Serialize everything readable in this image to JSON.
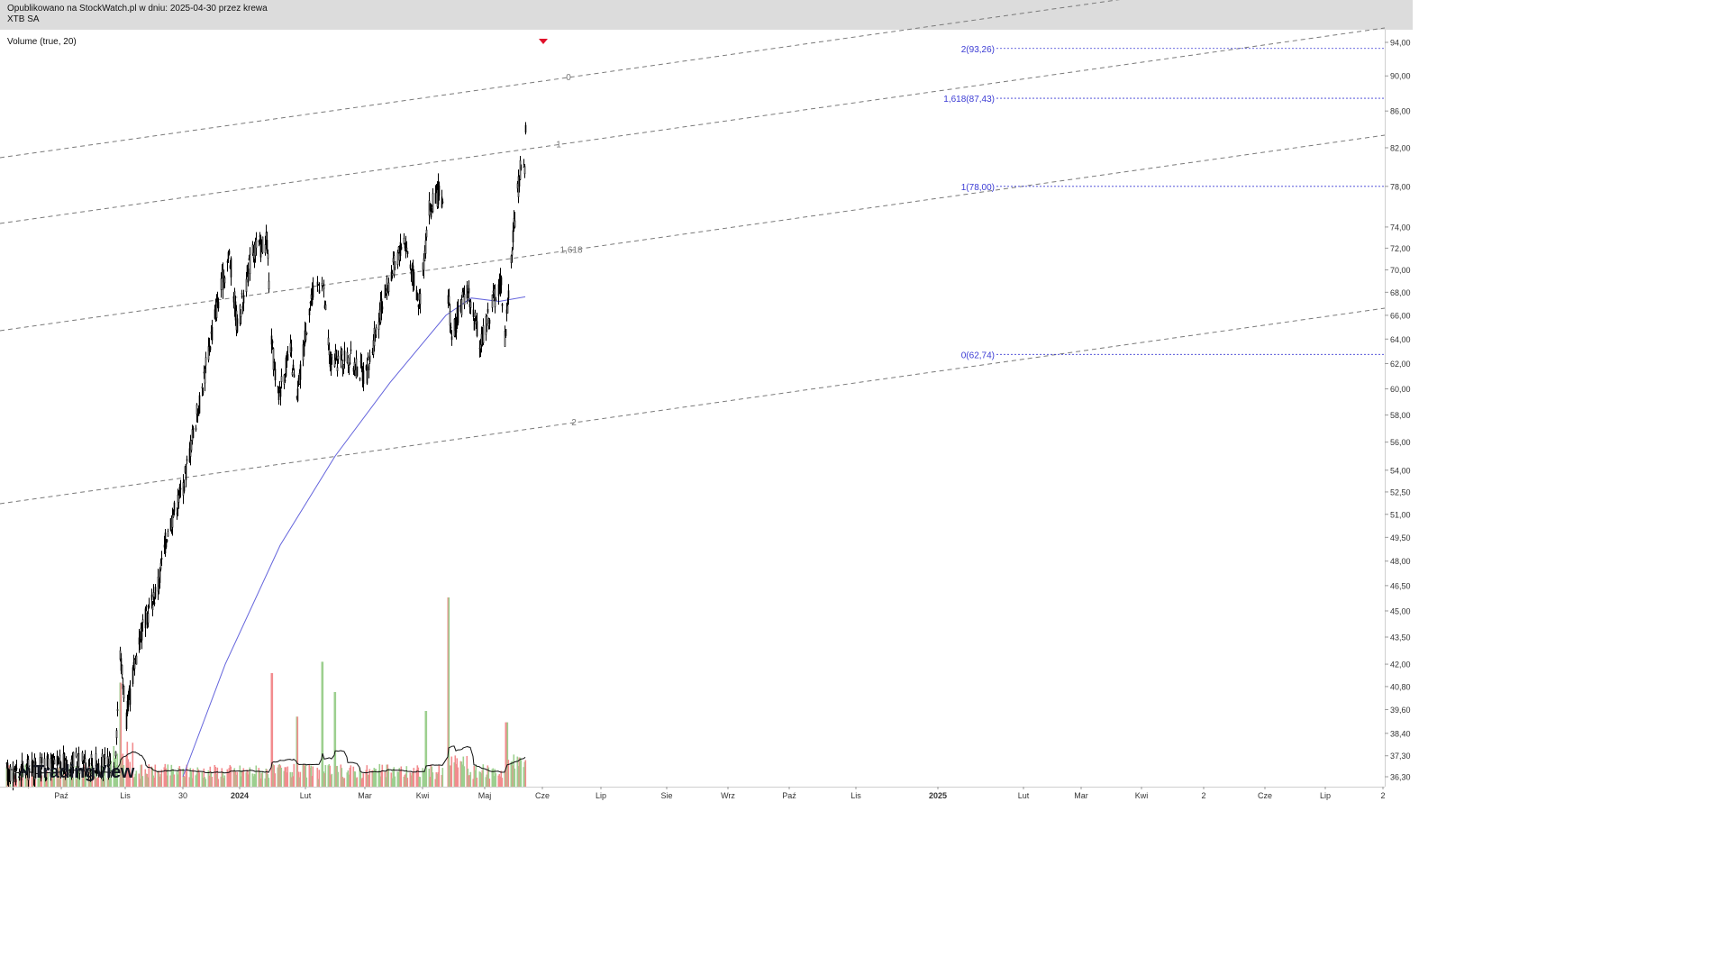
{
  "header": {
    "line1": "Opublikowano na StockWatch.pl w dniu: 2025-04-30 przez krewa",
    "line2": "XTB SA"
  },
  "indicator_label": "Volume (true, 20)",
  "logo_text": "TradingView",
  "colors": {
    "up": "#26a69a",
    "down": "#ef5350",
    "vol_up": "#9ccf8f",
    "vol_down": "#f28b8e",
    "candle": "#000000",
    "ma": "#6464dc",
    "fib": "#3b3bd4",
    "arrow": "#e0102a"
  },
  "chart_data": {
    "type": "candlestick",
    "y_axis": {
      "scale": "log",
      "ticks": [
        "94,00",
        "90,00",
        "86,00",
        "82,00",
        "78,00",
        "74,00",
        "72,00",
        "70,00",
        "68,00",
        "66,00",
        "64,00",
        "62,00",
        "60,00",
        "58,00",
        "56,00",
        "54,00",
        "52,50",
        "51,00",
        "49,50",
        "48,00",
        "46,50",
        "45,00",
        "43,50",
        "42,00",
        "40,80",
        "39,60",
        "38,40",
        "37,30",
        "36,30"
      ]
    },
    "x_axis": {
      "ticks": [
        "Paź",
        "Lis",
        "30",
        "2024",
        "Lut",
        "Mar",
        "Kwi",
        "Maj",
        "Cze",
        "Lip",
        "Sie",
        "Wrz",
        "Paź",
        "Lis",
        "2025",
        "Lut",
        "Mar",
        "Kwi",
        "2",
        "Cze",
        "Lip",
        "2"
      ]
    },
    "price_path": [
      {
        "date": "2023-10-02",
        "close": 36.5
      },
      {
        "date": "2023-12-27",
        "close": 37.0
      },
      {
        "date": "2024-01-30",
        "close": 36.8
      },
      {
        "date": "2024-02-05",
        "close": 42.5
      },
      {
        "date": "2024-02-12",
        "close": 39.2
      },
      {
        "date": "2024-02-26",
        "close": 43.5
      },
      {
        "date": "2024-03-18",
        "close": 46.5
      },
      {
        "date": "2024-03-28",
        "close": 49.8
      },
      {
        "date": "2024-04-15",
        "close": 53.0
      },
      {
        "date": "2024-05-06",
        "close": 60.0
      },
      {
        "date": "2024-05-20",
        "close": 66.0
      },
      {
        "date": "2024-06-05",
        "close": 71.5
      },
      {
        "date": "2024-06-14",
        "close": 65.0
      },
      {
        "date": "2024-07-01",
        "close": 71.8
      },
      {
        "date": "2024-07-17",
        "close": 72.5
      },
      {
        "date": "2024-07-22",
        "close": 63.5
      },
      {
        "date": "2024-07-29",
        "close": 59.5
      },
      {
        "date": "2024-08-12",
        "close": 63.0
      },
      {
        "date": "2024-08-19",
        "close": 59.0
      },
      {
        "date": "2024-09-02",
        "close": 67.0
      },
      {
        "date": "2024-09-16",
        "close": 69.5
      },
      {
        "date": "2024-09-25",
        "close": 62.0
      },
      {
        "date": "2024-10-14",
        "close": 62.5
      },
      {
        "date": "2024-11-04",
        "close": 61.0
      },
      {
        "date": "2024-11-25",
        "close": 68.0
      },
      {
        "date": "2024-12-16",
        "close": 73.0
      },
      {
        "date": "2025-01-02",
        "close": 67.0
      },
      {
        "date": "2025-01-13",
        "close": 75.5
      },
      {
        "date": "2025-01-24",
        "close": 77.5
      },
      {
        "date": "2025-01-31",
        "close": 74.0
      },
      {
        "date": "2025-02-03",
        "close": 68.0
      },
      {
        "date": "2025-02-07",
        "close": 64.0
      },
      {
        "date": "2025-02-24",
        "close": 68.5
      },
      {
        "date": "2025-03-10",
        "close": 63.5
      },
      {
        "date": "2025-03-24",
        "close": 67.0
      },
      {
        "date": "2025-04-03",
        "close": 69.0
      },
      {
        "date": "2025-04-07",
        "close": 64.0
      },
      {
        "date": "2025-04-17",
        "close": 74.0
      },
      {
        "date": "2025-04-24",
        "close": 79.5
      },
      {
        "date": "2025-04-28",
        "close": 80.5
      },
      {
        "date": "2025-04-29",
        "close": 79.0
      },
      {
        "date": "2025-04-30",
        "close": 84.0
      }
    ],
    "moving_average": [
      {
        "date": "2024-04-15",
        "value": 36.3
      },
      {
        "date": "2024-06-01",
        "value": 42.0
      },
      {
        "date": "2024-08-01",
        "value": 49.0
      },
      {
        "date": "2024-10-01",
        "value": 55.0
      },
      {
        "date": "2024-12-01",
        "value": 60.5
      },
      {
        "date": "2025-02-01",
        "value": 66.0
      },
      {
        "date": "2025-03-01",
        "value": 67.5
      },
      {
        "date": "2025-04-01",
        "value": 67.2
      },
      {
        "date": "2025-04-30",
        "value": 67.6
      }
    ],
    "volume": {
      "spikes": [
        {
          "date": "2024-02-05",
          "value": 0.55
        },
        {
          "date": "2024-07-22",
          "value": 0.6
        },
        {
          "date": "2024-09-16",
          "value": 0.66
        },
        {
          "date": "2024-09-30",
          "value": 0.5
        },
        {
          "date": "2025-01-10",
          "value": 0.4
        },
        {
          "date": "2025-02-03",
          "value": 1.0
        },
        {
          "date": "2025-04-09",
          "value": 0.34
        },
        {
          "date": "2024-08-19",
          "value": 0.37
        }
      ]
    },
    "fib_levels": [
      {
        "label": "2(93,26)",
        "value": 93.26
      },
      {
        "label": "1,618(87,43)",
        "value": 87.43
      },
      {
        "label": "1(78,00)",
        "value": 78.0
      },
      {
        "label": "0(62,74)",
        "value": 62.74
      }
    ],
    "channel_labels": [
      {
        "label": "2"
      },
      {
        "label": "1,618"
      },
      {
        "label": "1"
      },
      {
        "label": "0"
      }
    ],
    "marker": {
      "type": "arrow-down",
      "date": "2025-05-20",
      "value": 94.0
    }
  }
}
